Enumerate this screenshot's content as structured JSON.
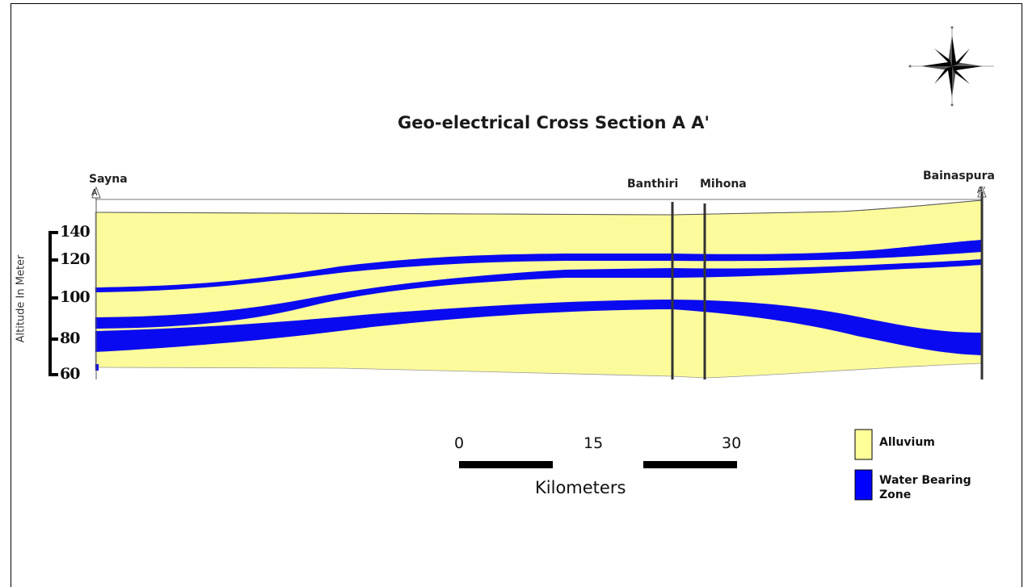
{
  "title": "Geo-electrical Cross Section A A'",
  "y_axis": {
    "label": "Altitude In Meter",
    "ticks": [
      "140",
      "120",
      "100",
      "80",
      "60"
    ]
  },
  "locations": {
    "start": "Sayna",
    "banthiri": "Banthiri",
    "mihona": "Mihona",
    "end": "Bainaspura"
  },
  "section_markers": {
    "start": "A",
    "end": "A'"
  },
  "scale_bar": {
    "ticks": [
      "0",
      "15",
      "30"
    ],
    "unit": "Kilometers"
  },
  "legend": [
    {
      "label": "Alluvium",
      "color": "#ffff99"
    },
    {
      "label": "Water Bearing Zone",
      "color": "#0000ff"
    }
  ],
  "colors": {
    "alluvium": "#fbfb9b",
    "water": "#0a0af0"
  },
  "icon": "compass-rose-icon"
}
